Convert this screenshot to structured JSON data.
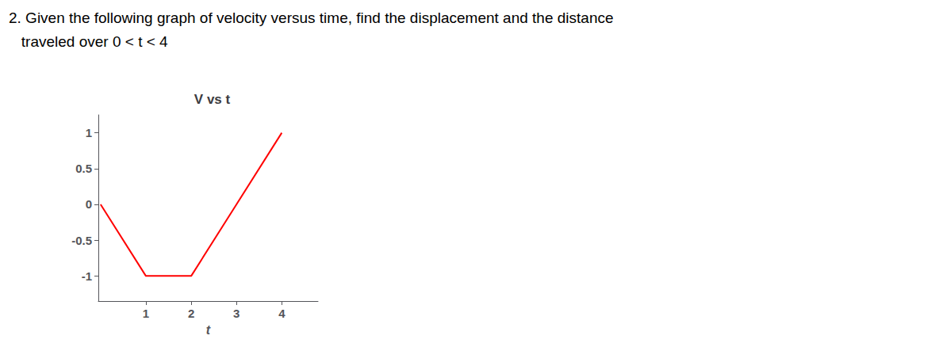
{
  "chart_data": {
    "type": "line",
    "title": "V vs t",
    "xlabel": "t",
    "annotations": [
      "2. Given the following graph of velocity versus time, find the displacement and the distance",
      "   traveled over 0 < t < 4"
    ],
    "x": [
      0,
      1,
      2,
      3,
      4
    ],
    "values": [
      0,
      -1,
      -1,
      0,
      1
    ],
    "color": "#ff0000",
    "xlim": [
      -0.05,
      4.8
    ],
    "xticks": [
      1,
      2,
      3,
      4
    ],
    "ylim": [
      -1.35,
      1.25
    ],
    "yticks": [
      -1,
      -0.5,
      0,
      0.5,
      1
    ],
    "grid": false
  }
}
